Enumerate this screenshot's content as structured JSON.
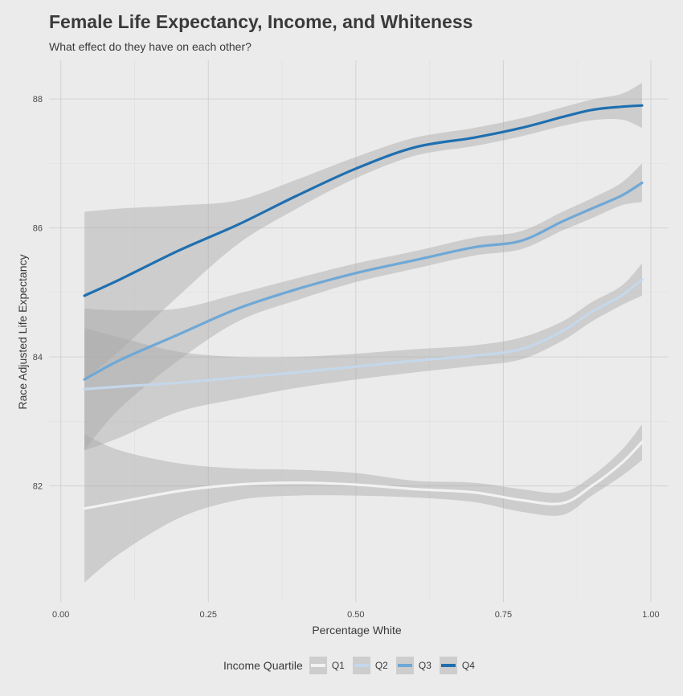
{
  "chart_data": {
    "type": "line",
    "title": "Female Life Expectancy, Income, and Whiteness",
    "subtitle": "What effect do they have on each other?",
    "xlabel": "Percentage White",
    "ylabel": "Race Adjusted Life Expectancy",
    "xlim": [
      -0.02,
      1.03
    ],
    "ylim": [
      80.2,
      88.6
    ],
    "x_ticks": [
      0.0,
      0.25,
      0.5,
      0.75,
      1.0
    ],
    "x_tick_labels": [
      "0.00",
      "0.25",
      "0.50",
      "0.75",
      "1.00"
    ],
    "y_ticks": [
      82,
      84,
      86,
      88
    ],
    "y_tick_labels": [
      "82",
      "84",
      "86",
      "88"
    ],
    "grid": true,
    "legend": {
      "title": "Income Quartile",
      "position": "bottom"
    },
    "x": [
      0.04,
      0.1,
      0.2,
      0.3,
      0.4,
      0.5,
      0.6,
      0.7,
      0.78,
      0.85,
      0.9,
      0.95,
      0.985
    ],
    "series": [
      {
        "name": "Q1",
        "color": "#f2f2f2",
        "values": [
          81.65,
          81.75,
          81.92,
          82.02,
          82.05,
          82.02,
          81.95,
          81.9,
          81.78,
          81.73,
          82.0,
          82.35,
          82.68
        ],
        "lower": [
          80.5,
          80.95,
          81.5,
          81.78,
          81.85,
          81.85,
          81.82,
          81.75,
          81.6,
          81.55,
          81.85,
          82.15,
          82.4
        ],
        "upper": [
          82.8,
          82.55,
          82.35,
          82.27,
          82.25,
          82.2,
          82.08,
          82.05,
          81.95,
          81.9,
          82.15,
          82.55,
          82.95
        ]
      },
      {
        "name": "Q2",
        "color": "#c5d7ea",
        "values": [
          83.5,
          83.54,
          83.6,
          83.68,
          83.76,
          83.85,
          83.94,
          84.02,
          84.12,
          84.4,
          84.7,
          84.95,
          85.2
        ],
        "lower": [
          82.55,
          82.75,
          83.15,
          83.35,
          83.52,
          83.65,
          83.76,
          83.86,
          83.96,
          84.25,
          84.55,
          84.8,
          84.95
        ],
        "upper": [
          84.45,
          84.3,
          84.08,
          84.0,
          84.0,
          84.05,
          84.12,
          84.18,
          84.3,
          84.55,
          84.85,
          85.1,
          85.45
        ]
      },
      {
        "name": "Q3",
        "color": "#6fa8d6",
        "values": [
          83.65,
          83.95,
          84.35,
          84.75,
          85.05,
          85.3,
          85.5,
          85.7,
          85.8,
          86.1,
          86.3,
          86.5,
          86.7
        ],
        "lower": [
          82.55,
          83.2,
          83.95,
          84.55,
          84.88,
          85.16,
          85.37,
          85.57,
          85.67,
          85.96,
          86.15,
          86.35,
          86.4
        ],
        "upper": [
          84.75,
          84.72,
          84.75,
          84.98,
          85.22,
          85.45,
          85.64,
          85.85,
          85.95,
          86.25,
          86.46,
          86.7,
          87.0
        ]
      },
      {
        "name": "Q4",
        "color": "#1f6fb0",
        "values": [
          84.95,
          85.2,
          85.65,
          86.05,
          86.5,
          86.92,
          87.25,
          87.4,
          87.55,
          87.72,
          87.83,
          87.88,
          87.9
        ],
        "lower": [
          83.65,
          84.1,
          84.95,
          85.75,
          86.3,
          86.77,
          87.12,
          87.27,
          87.42,
          87.58,
          87.67,
          87.68,
          87.55
        ],
        "upper": [
          86.25,
          86.3,
          86.35,
          86.43,
          86.75,
          87.1,
          87.4,
          87.55,
          87.7,
          87.87,
          87.99,
          88.08,
          88.25
        ]
      }
    ]
  }
}
